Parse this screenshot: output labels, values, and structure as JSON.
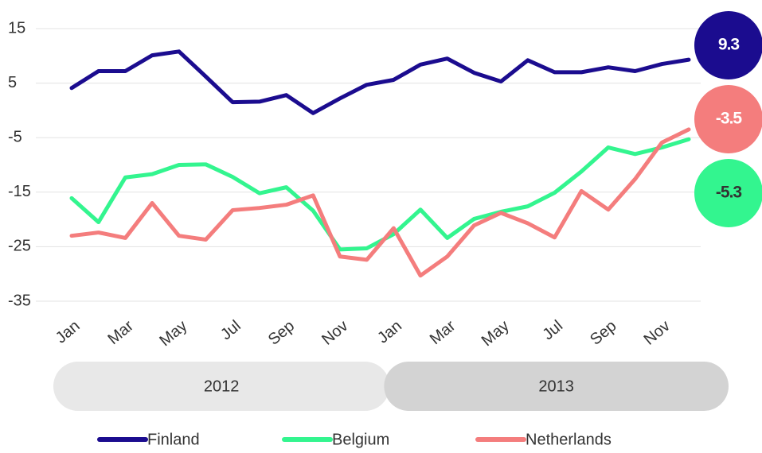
{
  "chart_data": {
    "type": "line",
    "categories": [
      "Jan",
      null,
      "Mar",
      null,
      "May",
      null,
      "Jul",
      null,
      "Sep",
      null,
      "Nov",
      null,
      "Jan",
      null,
      "Mar",
      null,
      "May",
      null,
      "Jul",
      null,
      "Sep",
      null,
      "Nov",
      null
    ],
    "x_groups": [
      "2012",
      "2013"
    ],
    "series": [
      {
        "name": "Finland",
        "color": "#1b0c8f",
        "values": [
          4.1,
          7.2,
          7.2,
          10.1,
          10.8,
          6.2,
          1.5,
          1.6,
          2.8,
          -0.5,
          2.2,
          4.7,
          5.6,
          8.4,
          9.5,
          6.9,
          5.3,
          9.2,
          7.0,
          7.0,
          7.9,
          7.2,
          8.5,
          9.3
        ]
      },
      {
        "name": "Belgium",
        "color": "#33f58f",
        "values": [
          -16.1,
          -20.5,
          -12.3,
          -11.7,
          -10.0,
          -9.9,
          -12.2,
          -15.2,
          -14.1,
          -18.4,
          -25.5,
          -25.3,
          -22.7,
          -18.2,
          -23.4,
          -19.9,
          -18.6,
          -17.6,
          -15.1,
          -11.2,
          -6.8,
          -8.0,
          -6.8,
          -5.3
        ]
      },
      {
        "name": "Netherlands",
        "color": "#f47d7d",
        "values": [
          -23.0,
          -22.4,
          -23.4,
          -17.0,
          -23.0,
          -23.7,
          -18.3,
          -17.9,
          -17.3,
          -15.6,
          -26.8,
          -27.4,
          -21.6,
          -30.3,
          -26.8,
          -21.1,
          -18.8,
          -20.7,
          -23.3,
          -14.8,
          -18.2,
          -12.6,
          -5.9,
          -3.5
        ]
      }
    ],
    "ylim": [
      -35,
      15
    ],
    "yticks": [
      15,
      5,
      -5,
      -15,
      -25,
      -35
    ],
    "grid": true
  }
}
